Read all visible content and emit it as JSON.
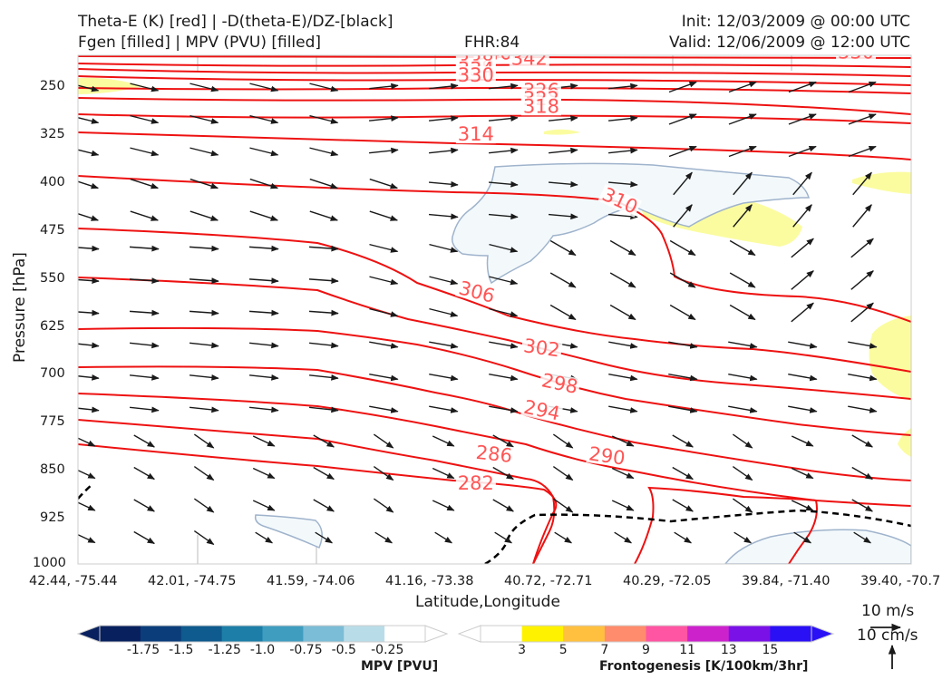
{
  "header": {
    "title_line1": "Theta-E (K) [red] | -D(theta-E)/DZ-[black]",
    "title_line2": "Fgen [filled] | MPV (PVU) [filled]",
    "fhr": "FHR:84",
    "init": "Init: 12/03/2009 @ 00:00 UTC",
    "valid": "Valid: 12/06/2009 @ 12:00 UTC"
  },
  "chart_data": {
    "type": "cross-section",
    "title": "Theta-E (K) [red] | -D(theta-E)/DZ-[black] Fgen [filled] | MPV (PVU) [filled]",
    "xlabel": "Latitude,Longitude",
    "ylabel": "Pressure [hPa]",
    "ylim": [
      1000,
      200
    ],
    "y_ticks": [
      250,
      325,
      400,
      475,
      550,
      625,
      700,
      775,
      850,
      925,
      1000
    ],
    "x_ticks": [
      "42.44, -75.44",
      "42.01, -74.75",
      "41.59, -74.06",
      "41.16, -73.38",
      "40.72, -72.71",
      "40.29, -72.05",
      "39.84, -71.40",
      "39.40, -70.7"
    ],
    "theta_e_contour_labels": [
      {
        "value": "346",
        "x_idx": 3.5,
        "p": 202
      },
      {
        "value": "342",
        "x_idx": 3.8,
        "p": 211
      },
      {
        "value": "338",
        "x_idx": 3.35,
        "p": 215
      },
      {
        "value": "334",
        "x_idx": 3.35,
        "p": 228
      },
      {
        "value": "330",
        "x_idx": 3.35,
        "p": 237
      },
      {
        "value": "330",
        "x_idx": 6.55,
        "p": 201
      },
      {
        "value": "326",
        "x_idx": 3.9,
        "p": 261
      },
      {
        "value": "322",
        "x_idx": 3.9,
        "p": 274
      },
      {
        "value": "318",
        "x_idx": 3.9,
        "p": 286
      },
      {
        "value": "314",
        "x_idx": 3.35,
        "p": 330
      },
      {
        "value": "310",
        "x_idx": 4.55,
        "p": 434
      },
      {
        "value": "306",
        "x_idx": 3.35,
        "p": 578
      },
      {
        "value": "302",
        "x_idx": 3.9,
        "p": 666
      },
      {
        "value": "298",
        "x_idx": 4.05,
        "p": 722
      },
      {
        "value": "294",
        "x_idx": 3.9,
        "p": 764
      },
      {
        "value": "290",
        "x_idx": 4.45,
        "p": 836
      },
      {
        "value": "286",
        "x_idx": 3.5,
        "p": 833
      },
      {
        "value": "282",
        "x_idx": 3.35,
        "p": 879
      }
    ],
    "mpv_colorbar": {
      "label": "MPV [PVU]",
      "tick_labels": [
        "-1.75",
        "-1.5",
        "-1.25",
        "-1.0",
        "-0.75",
        "-0.5",
        "-0.25"
      ],
      "colors": [
        "#08205e",
        "#0b3d7a",
        "#0f5a8e",
        "#1d7ea8",
        "#3f9dc0",
        "#7bbcd6",
        "#b9dde8",
        "#ffffff"
      ]
    },
    "fgen_colorbar": {
      "label": "Frontogenesis [K/100km/3hr]",
      "tick_labels": [
        "3",
        "5",
        "7",
        "9",
        "11",
        "13",
        "15"
      ],
      "colors": [
        "#ffffff",
        "#fff200",
        "#ffc040",
        "#ff8c6c",
        "#ff55a3",
        "#cc22cc",
        "#7a12e8",
        "#2a10f5"
      ]
    },
    "wind_key": {
      "horizontal": "10 m/s",
      "vertical": "10 cm/s"
    }
  },
  "colors": {
    "theta_e": "#ee1111",
    "label": "#ff5555",
    "dtheta_dz": "#000000",
    "mpv_fill": "#f3f9fb",
    "mpv_edge": "#9fb3cc",
    "fgen_fill": "#fbfca0"
  }
}
